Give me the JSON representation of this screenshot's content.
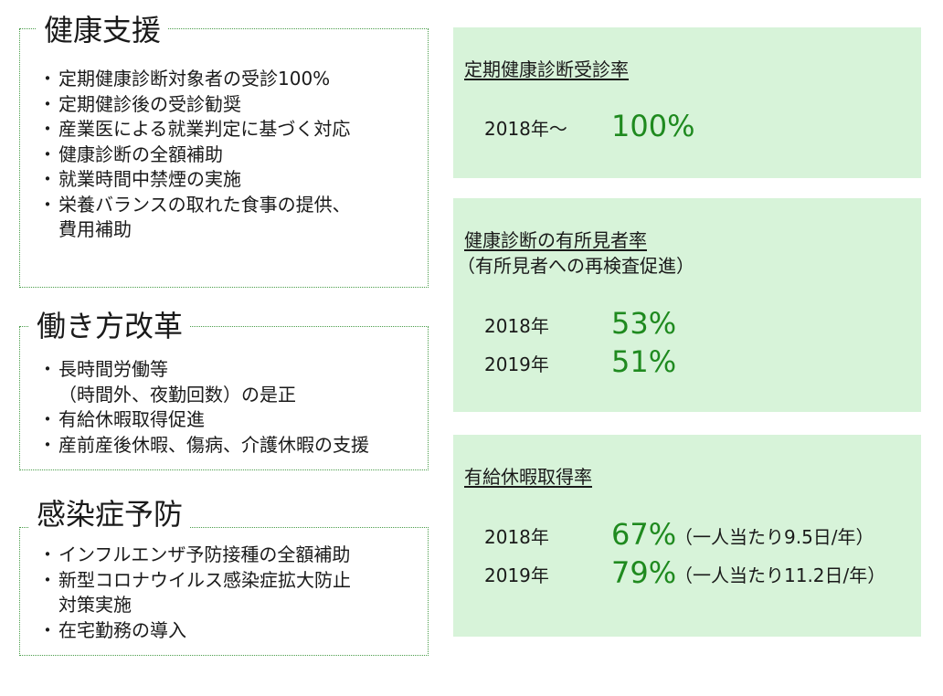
{
  "sections": {
    "health": {
      "title": "健康支援",
      "items": [
        "定期健康診断対象者の受診100%",
        "定期健診後の受診勧奨",
        "産業医による就業判定に基づく対応",
        "健康診断の全額補助",
        "就業時間中禁煙の実施",
        "栄養バランスの取れた食事の提供、",
        "費用補助"
      ]
    },
    "workstyle": {
      "title": "働き方改革",
      "items": [
        "長時間労働等",
        "（時間外、夜勤回数）の是正",
        "有給休暇取得促進",
        "産前産後休暇、傷病、介護休暇の支援"
      ]
    },
    "infection": {
      "title": "感染症予防",
      "items": [
        "インフルエンザ予防接種の全額補助",
        "新型コロナウイルス感染症拡大防止",
        "対策実施",
        "在宅勤務の導入"
      ]
    }
  },
  "stats": {
    "checkup_rate": {
      "heading": "定期健康診断受診率",
      "rows": [
        {
          "year": "2018年～",
          "value": "100%"
        }
      ]
    },
    "findings_rate": {
      "heading": "健康診断の有所見者率",
      "subheading": "（有所見者への再検査促進）",
      "rows": [
        {
          "year": "2018年",
          "value": "53%"
        },
        {
          "year": "2019年",
          "value": "51%"
        }
      ]
    },
    "leave_rate": {
      "heading": "有給休暇取得率",
      "rows": [
        {
          "year": "2018年",
          "value": "67%",
          "note": "（一人当たり9.5日/年）"
        },
        {
          "year": "2019年",
          "value": "79%",
          "note": "（一人当たり11.2日/年）"
        }
      ]
    }
  },
  "colors": {
    "border_dotted": "#4a9d4a",
    "panel_bg": "#d7f3d9",
    "value_green": "#1f8a1f"
  }
}
